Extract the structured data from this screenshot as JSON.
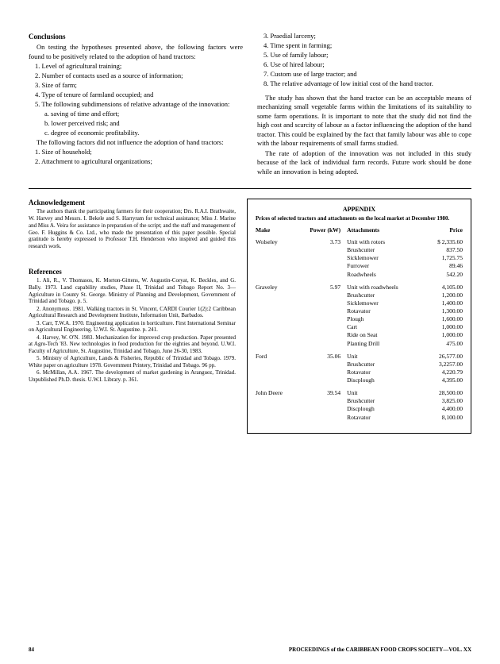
{
  "conclusions": {
    "title": "Conclusions",
    "intro": "On testing the hypotheses presented above, the following factors were found to be positively related to the adoption of hand tractors:",
    "positive": [
      "1. Level of agricultural training;",
      "2. Number of contacts used as a source of information;",
      "3. Size of farm;",
      "4. Type of tenure of farmland occupied; and",
      "5. The following subdimensions of relative advantage of the innovation:"
    ],
    "sub": [
      "a. saving of time and effort;",
      "b. lower perceived risk; and",
      "c. degree of economic profitability."
    ],
    "neg_intro": "The following factors did not influence the adoption of hand tractors:",
    "negative": [
      "1. Size of household;",
      "2. Attachment to agricultural organizations;"
    ],
    "right_list": [
      "3. Praedial larceny;",
      "4. Time spent in farming;",
      "5. Use of family labour;",
      "6. Use of hired labour;",
      "7. Custom use of large tractor; and",
      "8. The relative advantage of low initial cost of the hand tractor."
    ],
    "para1": "The study has shown that the hand tractor can be an acceptable means of mechanizing small vegetable farms within the limitations of its suitability to some farm operations. It is important to note that the study did not find the high cost and scarcity of labour as a factor influencing the adoption of the hand tractor. This could be explained by the fact that family labour was able to cope with the labour requirements of small farms studied.",
    "para2": "The rate of adoption of the innovation was not included in this study because of the lack of individual farm records. Future work should be done while an innovation is being adopted."
  },
  "ack": {
    "title": "Acknowledgement",
    "text": "The authors thank the participating farmers for their cooperation; Drs. R.A.I. Brathwaite, W. Harvey and Messrs. I. Bekele and S. Harryram for technical assistance; Miss J. Marine and Miss A. Veira for assistance in preparation of the script; and the staff and management of Geo. F. Huggins & Co. Ltd., who made the presentation of this paper possible. Special gratitude is hereby expressed to Professor T.H. Henderson who inspired and guided this research work."
  },
  "refs": {
    "title": "References",
    "items": [
      "1. Ali, R., V. Thomasos, K. Morton-Gittens, W. Augustin-Coryat, K. Beckles, and G. Bally. 1973. Land capability studies, Phase II, Trinidad and Tobago Report No. 3—Agriculture in County St. George. Ministry of Planning and Development, Government of Trinidad and Tobago. p. 5.",
      "2. Anonymous. 1981. Walking tractors in St. Vincent, CARDI Courier 1(2):2 Caribbean Agricultural Research and Development Institute, Information Unit, Barbados.",
      "3. Carr, T.W.A. 1970. Engineering application in horticulture. First International Seminar on Agricultural Engineering. U.W.I. St. Augustine. p. 241.",
      "4. Harvey, W. O'N. 1983. Mechanization for improved crop production. Paper presented at Agro-Tech '83. New technologies in food production for the eighties and beyond. U.W.I. Faculty of Agriculture, St. Augustine, Trinidad and Tobago, June 26-30, 1983.",
      "5. Ministry of Agriculture, Lands & Fisheries, Republic of Trinidad and Tobago. 1979. White paper on agriculture 1978. Government Printery, Trinidad and Tobago. 96 pp.",
      "6. McMillan, A.A. 1967. The development of market gardening in Aranguez, Trinidad. Unpublished Ph.D. thesis. U.W.I. Library. p. 361."
    ]
  },
  "appendix": {
    "title": "APPENDIX",
    "subtitle": "Prices of selected tractors and attachments on the local market at December 1980.",
    "headers": {
      "make": "Make",
      "power": "Power (kW)",
      "attach": "Attachments",
      "price": "Price"
    },
    "groups": [
      {
        "make": "Wolseley",
        "power": "3.73",
        "rows": [
          {
            "a": "Unit with rotors",
            "p": "$ 2,335.60"
          },
          {
            "a": "Brushcutter",
            "p": "837.50"
          },
          {
            "a": "Sicklemower",
            "p": "1,725.75"
          },
          {
            "a": "Furrower",
            "p": "89.46"
          },
          {
            "a": "Roadwheels",
            "p": "542.20"
          }
        ]
      },
      {
        "make": "Graveley",
        "power": "5.97",
        "rows": [
          {
            "a": "Unit with roadwheels",
            "p": "4,105.00"
          },
          {
            "a": "Brushcutter",
            "p": "1,200.00"
          },
          {
            "a": "Sicklemower",
            "p": "1,400.00"
          },
          {
            "a": "Rotavator",
            "p": "1,300.00"
          },
          {
            "a": "Plough",
            "p": "1,600.00"
          },
          {
            "a": "Cart",
            "p": "1,000.00"
          },
          {
            "a": "Ride on Seat",
            "p": "1,000.00"
          },
          {
            "a": "Planting Drill",
            "p": "475.00"
          }
        ]
      },
      {
        "make": "Ford",
        "power": "35.06",
        "rows": [
          {
            "a": "Unit",
            "p": "26,577.00"
          },
          {
            "a": "Brushcutter",
            "p": "3,2257.00"
          },
          {
            "a": "Rotavator",
            "p": "4,220.79"
          },
          {
            "a": "Discplough",
            "p": "4,395.00"
          }
        ]
      },
      {
        "make": "John Deere",
        "power": "39.54",
        "rows": [
          {
            "a": "Unit",
            "p": "28,500.00"
          },
          {
            "a": "Brushcutter",
            "p": "3,825.00"
          },
          {
            "a": "Discplough",
            "p": "4,400.00"
          },
          {
            "a": "Rotavator",
            "p": "8,100.00"
          }
        ]
      }
    ]
  },
  "footer": {
    "page": "84",
    "pub": "PROCEEDINGS of the CARIBBEAN FOOD CROPS SOCIETY—VOL. XX"
  }
}
